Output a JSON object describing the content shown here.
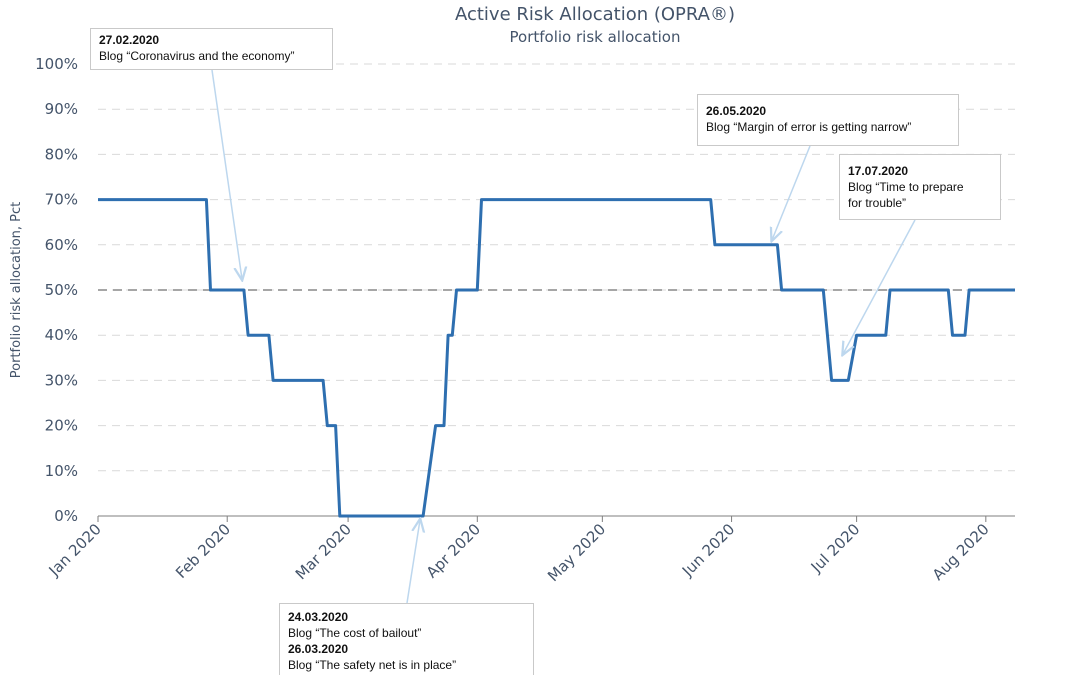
{
  "chart_data": {
    "type": "line",
    "title": "Active Risk Allocation (OPRA®)",
    "subtitle": "Portfolio risk allocation",
    "ylabel": "Portfolio risk allocation, Pct",
    "xlabel": "",
    "ylim": [
      0,
      100
    ],
    "yticks": [
      "0%",
      "10%",
      "20%",
      "30%",
      "40%",
      "50%",
      "60%",
      "70%",
      "80%",
      "90%",
      "100%"
    ],
    "yvalues": [
      0,
      10,
      20,
      30,
      40,
      50,
      60,
      70,
      80,
      90,
      100
    ],
    "xlim": [
      "2020-01-01",
      "2020-08-08"
    ],
    "xticks": [
      {
        "label": "Jan 2020",
        "date": "2020-01-01"
      },
      {
        "label": "Feb 2020",
        "date": "2020-02-01"
      },
      {
        "label": "Mar 2020",
        "date": "2020-03-01"
      },
      {
        "label": "Apr 2020",
        "date": "2020-04-01"
      },
      {
        "label": "May 2020",
        "date": "2020-05-01"
      },
      {
        "label": "Jun 2020",
        "date": "2020-06-01"
      },
      {
        "label": "Jul 2020",
        "date": "2020-07-01"
      },
      {
        "label": "Aug 2020",
        "date": "2020-08-01"
      }
    ],
    "grid": "horizontal-dashed",
    "reference_line": {
      "y": 50,
      "style": "dashed",
      "color": "#a6a6a6"
    },
    "series": [
      {
        "color": "#2e6fb0",
        "x": [
          "2020-01-01",
          "2020-01-27",
          "2020-01-28",
          "2020-02-05",
          "2020-02-06",
          "2020-02-11",
          "2020-02-12",
          "2020-02-24",
          "2020-02-25",
          "2020-02-27",
          "2020-02-28",
          "2020-03-19",
          "2020-03-22",
          "2020-03-24",
          "2020-03-25",
          "2020-03-26",
          "2020-03-27",
          "2020-03-30",
          "2020-04-01",
          "2020-04-02",
          "2020-05-27",
          "2020-05-28",
          "2020-06-12",
          "2020-06-13",
          "2020-06-23",
          "2020-06-25",
          "2020-06-29",
          "2020-07-01",
          "2020-07-08",
          "2020-07-09",
          "2020-07-23",
          "2020-07-24",
          "2020-07-27",
          "2020-07-28",
          "2020-08-08"
        ],
        "y": [
          70,
          70,
          50,
          50,
          40,
          40,
          30,
          30,
          20,
          20,
          0,
          0,
          20,
          20,
          40,
          40,
          50,
          50,
          50,
          70,
          70,
          60,
          60,
          50,
          50,
          30,
          30,
          40,
          40,
          50,
          50,
          40,
          40,
          50,
          50
        ]
      }
    ]
  },
  "annotations": [
    {
      "date": "27.02.2020",
      "text": "Blog “Coronavirus and the economy”"
    },
    {
      "date": "26.05.2020",
      "text": "Blog “Margin of error is getting narrow”"
    },
    {
      "date": "17.07.2020",
      "text": "Blog “Time to prepare\nfor trouble”"
    },
    {
      "date": "24.03.2020",
      "text": "Blog “The cost of bailout”",
      "date2": "26.03.2020",
      "text2": "Blog “The safety net is in place”"
    }
  ]
}
